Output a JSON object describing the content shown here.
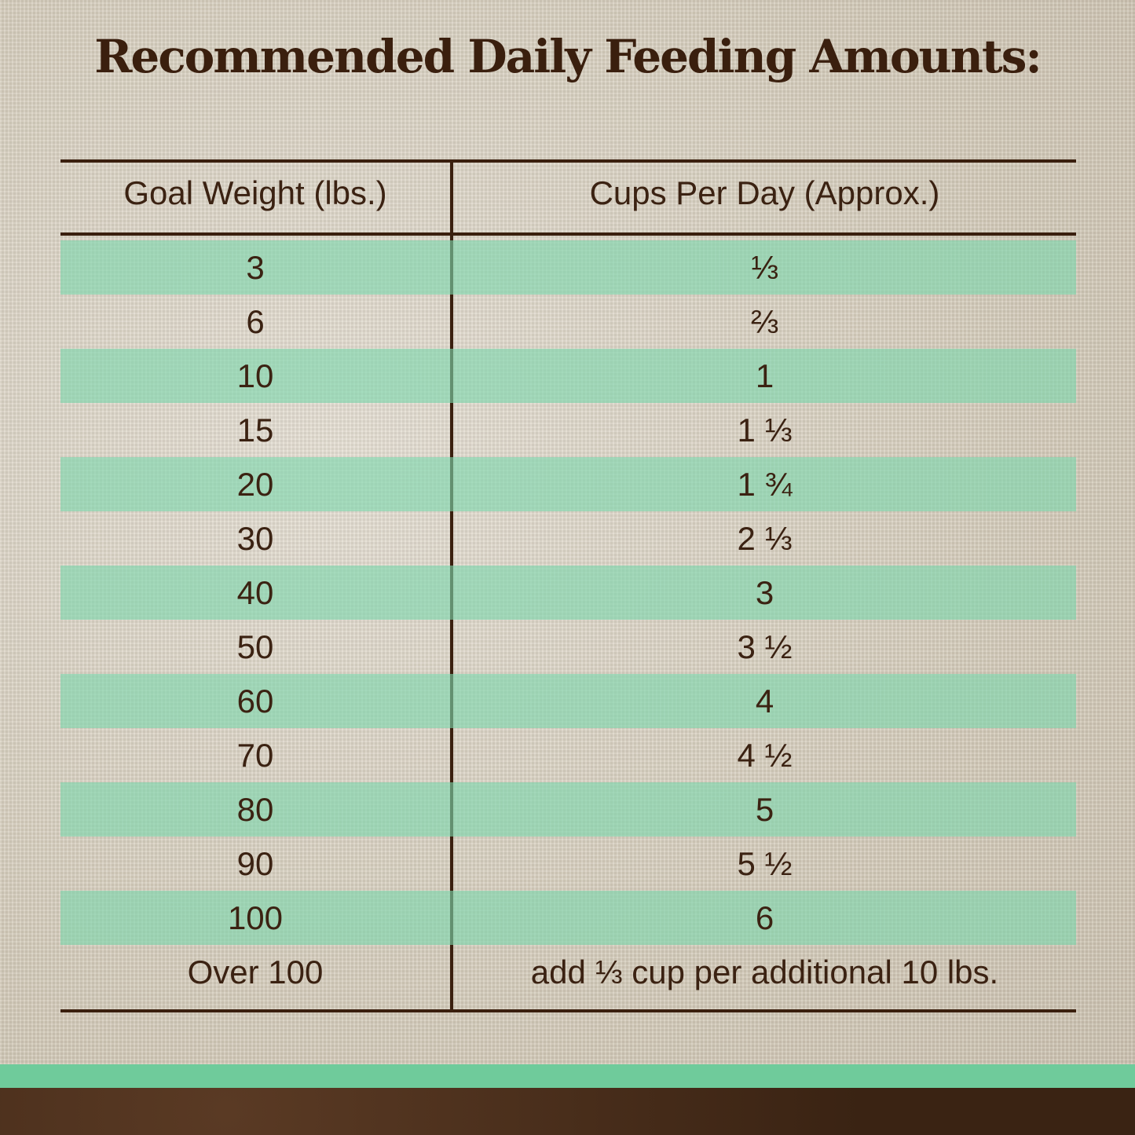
{
  "title": "Recommended Daily Feeding Amounts:",
  "table": {
    "headers": [
      "Goal Weight (lbs.)",
      "Cups Per Day (Approx.)"
    ],
    "rows": [
      [
        "3",
        "⅓"
      ],
      [
        "6",
        "⅔"
      ],
      [
        "10",
        "1"
      ],
      [
        "15",
        "1 ⅓"
      ],
      [
        "20",
        "1 ¾"
      ],
      [
        "30",
        "2 ⅓"
      ],
      [
        "40",
        "3"
      ],
      [
        "50",
        "3 ½"
      ],
      [
        "60",
        "4"
      ],
      [
        "70",
        "4 ½"
      ],
      [
        "80",
        "5"
      ],
      [
        "90",
        "5 ½"
      ],
      [
        "100",
        "6"
      ],
      [
        "Over 100",
        "add ⅓ cup per additional 10 lbs."
      ]
    ]
  },
  "colors": {
    "text": "#3a1f0e",
    "stripe": "#9edcbc",
    "band": "#6fcb9b"
  }
}
